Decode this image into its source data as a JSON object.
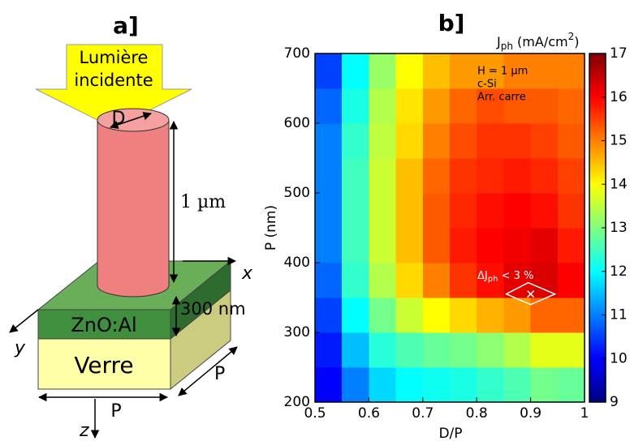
{
  "diagram": {
    "title": "a]",
    "light": [
      "Lumière",
      "incidente"
    ],
    "diameter": "D",
    "height": "1 µm",
    "x_axis": "x",
    "layer_thickness": "300 nm",
    "layer": "ZnO:Al",
    "y_axis": "y",
    "substrate": "Verre",
    "period_x": "P",
    "period_y": "P",
    "z_axis": "z"
  },
  "chart_data": {
    "type": "heatmap",
    "title": "b]",
    "x_label": "D/P",
    "y_label": "P (nm)",
    "colorbar_label": [
      "J",
      "ph",
      " (mA/cm",
      "2",
      ")"
    ],
    "annotations": [
      "H = 1 µm",
      "c-Si",
      "Arr. carre"
    ],
    "region_label": [
      "ΔJ",
      "ph",
      " < 3 %"
    ],
    "optimum": {
      "x": 0.9,
      "y": 355
    },
    "x": [
      0.525,
      0.575,
      0.625,
      0.675,
      0.725,
      0.775,
      0.825,
      0.875,
      0.925,
      0.975
    ],
    "y": [
      225,
      275,
      325,
      375,
      425,
      475,
      525,
      575,
      625,
      675
    ],
    "z": [
      [
        10,
        11,
        11.7,
        12,
        12.1,
        12.2,
        12.4,
        12.6,
        12.9,
        12.8
      ],
      [
        10.2,
        11.5,
        12.3,
        12.6,
        12.8,
        12.9,
        13.1,
        13.4,
        13.8,
        13.8
      ],
      [
        10.5,
        12,
        12.9,
        13.6,
        14,
        14.3,
        14.6,
        14.8,
        15.2,
        15.2
      ],
      [
        10.8,
        12.4,
        13.4,
        14.3,
        15,
        15.6,
        15.9,
        16.2,
        16.3,
        16
      ],
      [
        11,
        12.5,
        13.6,
        14.5,
        15.3,
        15.8,
        16,
        16.1,
        16.2,
        15.8
      ],
      [
        11,
        12.5,
        13.6,
        14.5,
        15.3,
        15.7,
        15.9,
        16,
        15.9,
        15.6
      ],
      [
        11,
        12.5,
        13.6,
        14.5,
        15.2,
        15.6,
        15.7,
        15.8,
        15.7,
        15.5
      ],
      [
        11,
        12.4,
        13.5,
        14.3,
        15,
        15.4,
        15.6,
        15.6,
        15.5,
        15.3
      ],
      [
        10.8,
        12.2,
        13.4,
        14.2,
        14.8,
        15.2,
        15.4,
        15.3,
        15.3,
        15.2
      ],
      [
        10.5,
        12,
        13.2,
        14,
        14.5,
        14.8,
        14.8,
        15,
        15,
        15
      ]
    ],
    "xlim": [
      0.5,
      1
    ],
    "ylim": [
      200,
      700
    ],
    "xticks": [
      0.5,
      0.6,
      0.7,
      0.8,
      0.9,
      1
    ],
    "yticks": [
      200,
      300,
      400,
      500,
      600,
      700
    ],
    "zlim": [
      9,
      17
    ],
    "zticks": [
      9,
      10,
      11,
      12,
      13,
      14,
      15,
      16,
      17
    ],
    "colormap": [
      "#00007f",
      "#0000ff",
      "#007fff",
      "#00ffff",
      "#7fff7f",
      "#ffff00",
      "#ff7f00",
      "#ff0000",
      "#7f0000"
    ]
  }
}
